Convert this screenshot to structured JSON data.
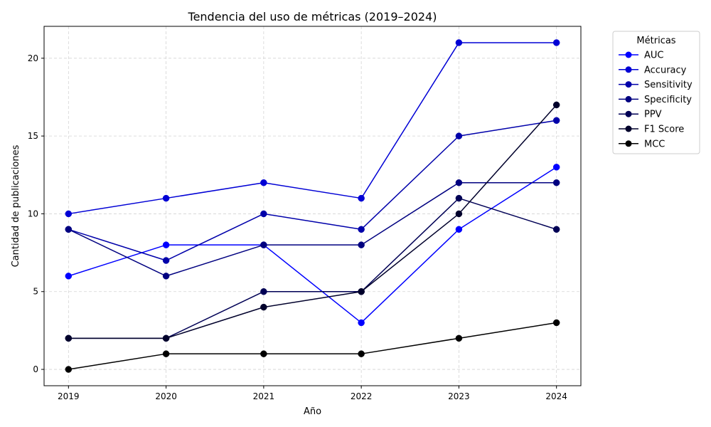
{
  "chart_data": {
    "type": "line",
    "title": "Tendencia del uso de métricas (2019–2024)",
    "xlabel": "Año",
    "ylabel": "Cantidad de publicaciones",
    "x": [
      2019,
      2020,
      2021,
      2022,
      2023,
      2024
    ],
    "x_tick_labels": [
      "2019",
      "2020",
      "2021",
      "2022",
      "2023",
      "2024"
    ],
    "y_ticks": [
      0,
      5,
      10,
      15,
      20
    ],
    "y_tick_labels": [
      "0",
      "5",
      "10",
      "15",
      "20"
    ],
    "xlim": [
      2018.75,
      2024.25
    ],
    "ylim": [
      -1.05,
      22.05
    ],
    "grid": true,
    "legend": {
      "title": "Métricas",
      "placement": "upper-right-outside"
    },
    "series": [
      {
        "name": "AUC",
        "color": "#0000ff",
        "values": [
          6,
          8,
          8,
          3,
          9,
          13
        ]
      },
      {
        "name": "Accuracy",
        "color": "#0000d5",
        "values": [
          10,
          11,
          12,
          11,
          21,
          21
        ]
      },
      {
        "name": "Sensitivity",
        "color": "#0000aa",
        "values": [
          9,
          7,
          10,
          9,
          15,
          16
        ]
      },
      {
        "name": "Specificity",
        "color": "#000080",
        "values": [
          9,
          6,
          8,
          8,
          12,
          12
        ]
      },
      {
        "name": "PPV",
        "color": "#000055",
        "values": [
          2,
          2,
          5,
          5,
          11,
          9
        ]
      },
      {
        "name": "F1 Score",
        "color": "#00002b",
        "values": [
          2,
          2,
          4,
          5,
          10,
          17
        ]
      },
      {
        "name": "MCC",
        "color": "#000000",
        "values": [
          0,
          1,
          1,
          1,
          2,
          3
        ]
      }
    ]
  }
}
